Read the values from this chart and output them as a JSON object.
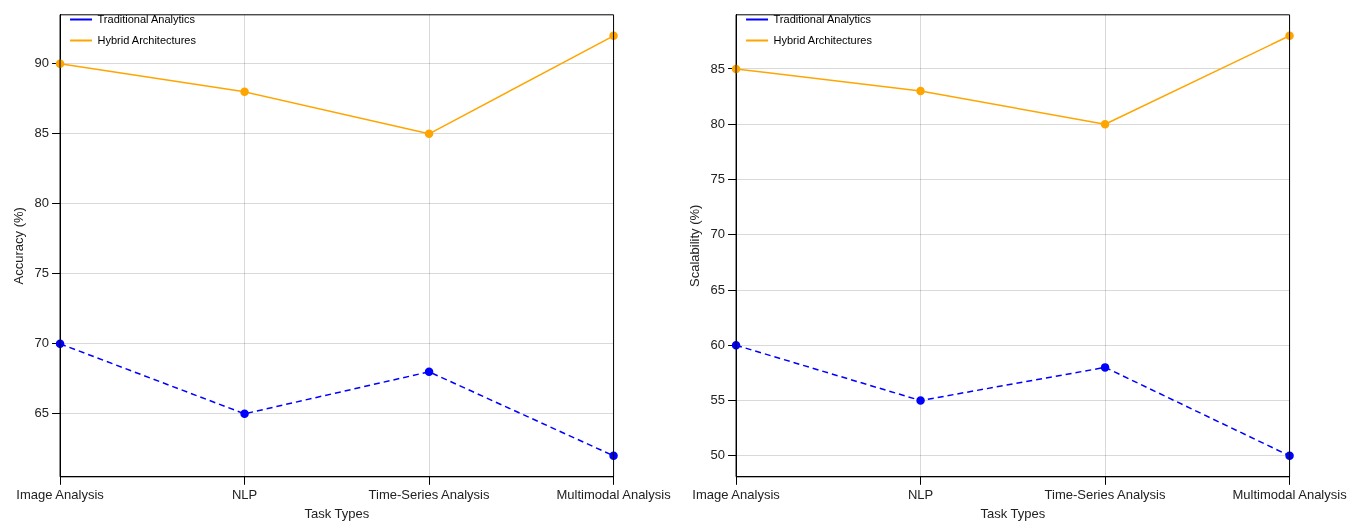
{
  "chart_data": [
    {
      "type": "line",
      "xlabel": "Task Types",
      "ylabel": "Accuracy (%)",
      "categories": [
        "Image Analysis",
        "NLP",
        "Time-Series Analysis",
        "Multimodal Analysis"
      ],
      "series": [
        {
          "name": "Traditional Analytics",
          "color": "#0000ff",
          "values": [
            70,
            65,
            68,
            62
          ],
          "line_style": "dashed"
        },
        {
          "name": "Hybrid Architectures",
          "color": "#ffa500",
          "values": [
            90,
            88,
            85,
            92
          ],
          "line_style": "solid"
        }
      ],
      "ylim": [
        60.5,
        93.5
      ],
      "yticks": [
        65,
        70,
        75,
        80,
        85,
        90
      ],
      "grid": true,
      "legend": "top left",
      "marker": "circle"
    },
    {
      "type": "line",
      "xlabel": "Task Types",
      "ylabel": "Scalability (%)",
      "categories": [
        "Image Analysis",
        "NLP",
        "Time-Series Analysis",
        "Multimodal Analysis"
      ],
      "series": [
        {
          "name": "Traditional Analytics",
          "color": "#0000ff",
          "values": [
            60,
            55,
            58,
            50
          ],
          "line_style": "dashed"
        },
        {
          "name": "Hybrid Architectures",
          "color": "#ffa500",
          "values": [
            85,
            83,
            80,
            88
          ],
          "line_style": "solid"
        }
      ],
      "ylim": [
        48.1,
        89.9
      ],
      "yticks": [
        50,
        55,
        60,
        65,
        70,
        75,
        80,
        85
      ],
      "grid": true,
      "legend": "top left",
      "marker": "circle"
    }
  ]
}
